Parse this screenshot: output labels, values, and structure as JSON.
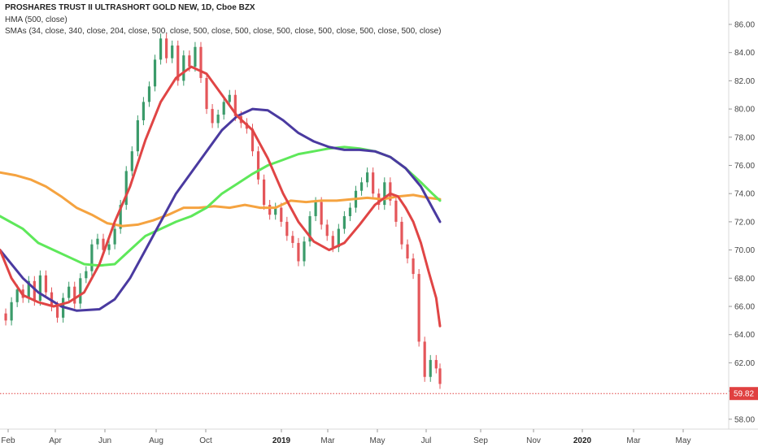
{
  "header": {
    "title": "PROSHARES TRUST II ULTRASHORT GOLD NEW, 1D, Cboe BZX",
    "hma_label": "HMA (500, close)",
    "sma_label": "SMAs (34, close, 340, close, 204, close, 500, close, 500, close, 500, close, 500, close, 500, close, 500, close, 500, close)"
  },
  "chart_data": {
    "type": "line",
    "x_axis": {
      "labels": [
        "Feb",
        "Apr",
        "Jun",
        "Aug",
        "Oct",
        "2019",
        "Mar",
        "May",
        "Jul",
        "Sep",
        "Nov",
        "2020",
        "Mar",
        "May"
      ],
      "bold_labels": [
        "2019",
        "2020"
      ]
    },
    "y_axis": {
      "ticks": [
        58.0,
        60.0,
        62.0,
        64.0,
        66.0,
        68.0,
        70.0,
        72.0,
        74.0,
        76.0,
        78.0,
        80.0,
        82.0,
        84.0,
        86.0
      ],
      "range": [
        57.0,
        87.0
      ],
      "side": "right",
      "grid": false
    },
    "last_price": {
      "value": 59.82,
      "label": "59.82",
      "color": "#e04040"
    },
    "colors": {
      "up": "#3b9b6a",
      "down": "#e4565a",
      "hma": "#4a3aa0",
      "sma_fast": "#e04545",
      "sma_mid": "#5ee85a",
      "sma_slow": "#f5a340"
    },
    "series": [
      {
        "role": "price",
        "points": [
          [
            0.0,
            65.5
          ],
          [
            1.5,
            65.0
          ],
          [
            3.0,
            66.3
          ],
          [
            4.5,
            67.2
          ],
          [
            6.0,
            66.6
          ],
          [
            7.5,
            67.8
          ],
          [
            9.0,
            66.4
          ],
          [
            10.5,
            68.2
          ],
          [
            12.0,
            67.0
          ],
          [
            13.5,
            66.0
          ],
          [
            15.0,
            65.2
          ],
          [
            16.5,
            66.6
          ],
          [
            18.0,
            67.4
          ],
          [
            19.5,
            66.2
          ],
          [
            21.0,
            68.0
          ],
          [
            22.5,
            68.5
          ],
          [
            24.0,
            70.4
          ],
          [
            25.5,
            70.8
          ],
          [
            27.0,
            70.0
          ],
          [
            28.5,
            70.4
          ],
          [
            30.0,
            71.5
          ],
          [
            31.5,
            73.2
          ],
          [
            33.0,
            75.6
          ],
          [
            34.5,
            77.0
          ],
          [
            36.0,
            79.2
          ],
          [
            37.5,
            80.5
          ],
          [
            39.0,
            81.6
          ],
          [
            40.5,
            83.5
          ],
          [
            42.0,
            85.0
          ],
          [
            43.5,
            83.6
          ],
          [
            45.0,
            84.5
          ],
          [
            46.5,
            82.0
          ],
          [
            48.0,
            83.8
          ],
          [
            49.5,
            83.0
          ],
          [
            51.0,
            84.4
          ],
          [
            52.5,
            82.2
          ],
          [
            54.0,
            80.0
          ],
          [
            55.5,
            79.0
          ],
          [
            57.0,
            79.6
          ],
          [
            58.5,
            80.5
          ],
          [
            60.0,
            81.0
          ],
          [
            61.5,
            79.5
          ],
          [
            63.0,
            79.0
          ],
          [
            64.5,
            78.6
          ],
          [
            66.0,
            77.0
          ],
          [
            67.5,
            75.0
          ],
          [
            69.0,
            73.2
          ],
          [
            70.5,
            72.5
          ],
          [
            72.0,
            73.0
          ],
          [
            73.5,
            72.0
          ],
          [
            75.0,
            71.0
          ],
          [
            76.5,
            70.5
          ],
          [
            78.0,
            69.2
          ],
          [
            79.5,
            70.6
          ],
          [
            81.0,
            72.4
          ],
          [
            82.5,
            73.4
          ],
          [
            84.0,
            71.8
          ],
          [
            85.5,
            71.0
          ],
          [
            87.0,
            70.2
          ],
          [
            88.5,
            71.5
          ],
          [
            90.0,
            72.4
          ],
          [
            91.5,
            73.0
          ],
          [
            93.0,
            74.2
          ],
          [
            94.5,
            74.8
          ],
          [
            96.0,
            75.5
          ],
          [
            97.5,
            74.0
          ],
          [
            99.0,
            73.2
          ],
          [
            100.5,
            74.8
          ],
          [
            102.0,
            73.5
          ],
          [
            103.5,
            72.0
          ],
          [
            105.0,
            70.4
          ],
          [
            106.5,
            69.4
          ],
          [
            108.0,
            68.3
          ],
          [
            109.5,
            63.5
          ],
          [
            111.0,
            61.0
          ],
          [
            112.5,
            62.2
          ],
          [
            114.0,
            61.6
          ],
          [
            115.0,
            60.5
          ]
        ]
      },
      {
        "role": "hma",
        "points": [
          [
            0.0,
            70.0
          ],
          [
            6.0,
            68.0
          ],
          [
            10.0,
            67.0
          ],
          [
            16.0,
            66.0
          ],
          [
            20.0,
            65.7
          ],
          [
            26.0,
            65.8
          ],
          [
            30.0,
            66.5
          ],
          [
            34.0,
            68.0
          ],
          [
            38.0,
            70.0
          ],
          [
            42.0,
            72.0
          ],
          [
            46.0,
            74.0
          ],
          [
            50.0,
            75.5
          ],
          [
            54.0,
            77.0
          ],
          [
            58.0,
            78.5
          ],
          [
            62.0,
            79.5
          ],
          [
            66.0,
            80.0
          ],
          [
            70.0,
            79.9
          ],
          [
            74.0,
            79.2
          ],
          [
            78.0,
            78.3
          ],
          [
            82.0,
            77.7
          ],
          [
            86.0,
            77.3
          ],
          [
            90.0,
            77.1
          ],
          [
            94.0,
            77.1
          ],
          [
            98.0,
            77.0
          ],
          [
            102.0,
            76.6
          ],
          [
            106.0,
            75.8
          ],
          [
            110.0,
            74.5
          ],
          [
            113.0,
            73.0
          ],
          [
            115.0,
            72.0
          ]
        ]
      },
      {
        "role": "sma_fast",
        "points": [
          [
            0.0,
            70.0
          ],
          [
            3.0,
            68.0
          ],
          [
            6.0,
            66.8
          ],
          [
            10.0,
            66.3
          ],
          [
            14.0,
            66.0
          ],
          [
            18.0,
            66.3
          ],
          [
            22.0,
            67.0
          ],
          [
            26.0,
            69.0
          ],
          [
            30.0,
            72.0
          ],
          [
            34.0,
            74.5
          ],
          [
            38.0,
            77.8
          ],
          [
            42.0,
            80.5
          ],
          [
            46.0,
            82.2
          ],
          [
            50.0,
            83.0
          ],
          [
            54.0,
            82.5
          ],
          [
            58.0,
            81.0
          ],
          [
            62.0,
            79.5
          ],
          [
            66.0,
            78.5
          ],
          [
            70.0,
            76.5
          ],
          [
            74.0,
            74.0
          ],
          [
            78.0,
            72.0
          ],
          [
            82.0,
            70.6
          ],
          [
            86.0,
            70.0
          ],
          [
            90.0,
            70.5
          ],
          [
            94.0,
            71.8
          ],
          [
            98.0,
            73.2
          ],
          [
            100.0,
            73.6
          ],
          [
            102.0,
            74.0
          ],
          [
            104.0,
            73.8
          ],
          [
            106.0,
            73.0
          ],
          [
            108.0,
            72.0
          ],
          [
            110.0,
            70.5
          ],
          [
            112.0,
            68.5
          ],
          [
            114.0,
            66.6
          ],
          [
            115.0,
            64.6
          ]
        ]
      },
      {
        "role": "sma_mid",
        "points": [
          [
            0.0,
            72.4
          ],
          [
            6.0,
            71.5
          ],
          [
            10.0,
            70.5
          ],
          [
            14.0,
            70.0
          ],
          [
            18.0,
            69.5
          ],
          [
            22.0,
            69.0
          ],
          [
            26.0,
            68.9
          ],
          [
            30.0,
            69.0
          ],
          [
            34.0,
            70.0
          ],
          [
            38.0,
            71.0
          ],
          [
            42.0,
            71.5
          ],
          [
            46.0,
            72.0
          ],
          [
            50.0,
            72.4
          ],
          [
            54.0,
            73.0
          ],
          [
            58.0,
            74.0
          ],
          [
            62.0,
            74.7
          ],
          [
            66.0,
            75.4
          ],
          [
            70.0,
            76.0
          ],
          [
            74.0,
            76.4
          ],
          [
            78.0,
            76.8
          ],
          [
            82.0,
            77.0
          ],
          [
            86.0,
            77.2
          ],
          [
            90.0,
            77.3
          ],
          [
            94.0,
            77.2
          ],
          [
            98.0,
            77.0
          ],
          [
            102.0,
            76.6
          ],
          [
            106.0,
            75.8
          ],
          [
            110.0,
            74.8
          ],
          [
            113.0,
            74.0
          ],
          [
            115.0,
            73.5
          ]
        ]
      },
      {
        "role": "sma_slow",
        "points": [
          [
            0.0,
            75.5
          ],
          [
            4.0,
            75.3
          ],
          [
            8.0,
            75.0
          ],
          [
            12.0,
            74.5
          ],
          [
            16.0,
            73.8
          ],
          [
            20.0,
            73.0
          ],
          [
            24.0,
            72.5
          ],
          [
            28.0,
            71.9
          ],
          [
            32.0,
            71.7
          ],
          [
            36.0,
            71.8
          ],
          [
            40.0,
            72.1
          ],
          [
            44.0,
            72.5
          ],
          [
            48.0,
            73.0
          ],
          [
            52.0,
            73.0
          ],
          [
            56.0,
            73.1
          ],
          [
            60.0,
            73.0
          ],
          [
            64.0,
            73.2
          ],
          [
            68.0,
            73.0
          ],
          [
            72.0,
            73.0
          ],
          [
            76.0,
            73.5
          ],
          [
            80.0,
            73.4
          ],
          [
            84.0,
            73.5
          ],
          [
            88.0,
            73.5
          ],
          [
            92.0,
            73.6
          ],
          [
            96.0,
            73.7
          ],
          [
            100.0,
            73.6
          ],
          [
            104.0,
            73.8
          ],
          [
            108.0,
            73.9
          ],
          [
            112.0,
            73.7
          ],
          [
            115.0,
            73.6
          ]
        ]
      }
    ]
  }
}
